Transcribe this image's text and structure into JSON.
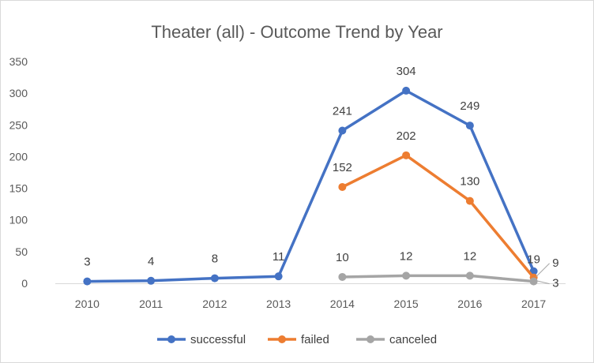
{
  "chart_data": {
    "type": "line",
    "title": "Theater (all) - Outcome Trend by Year",
    "xlabel": "",
    "ylabel": "",
    "categories": [
      "2010",
      "2011",
      "2012",
      "2013",
      "2014",
      "2015",
      "2016",
      "2017"
    ],
    "y_ticks": [
      "0",
      "50",
      "100",
      "150",
      "200",
      "250",
      "300",
      "350"
    ],
    "ylim": [
      0,
      350
    ],
    "grid": false,
    "legend_position": "bottom",
    "series": [
      {
        "name": "successful",
        "color": "#4472C4",
        "values": [
          3,
          4,
          8,
          11,
          241,
          304,
          249,
          19
        ],
        "labels": [
          "3",
          "4",
          "8",
          "11",
          "241",
          "304",
          "249",
          "19"
        ]
      },
      {
        "name": "failed",
        "color": "#ED7D31",
        "values": [
          null,
          null,
          null,
          null,
          152,
          202,
          130,
          9
        ],
        "labels": [
          null,
          null,
          null,
          null,
          "152",
          "202",
          "130",
          "9"
        ]
      },
      {
        "name": "canceled",
        "color": "#A5A5A5",
        "values": [
          null,
          null,
          null,
          null,
          10,
          12,
          12,
          3
        ],
        "labels": [
          null,
          null,
          null,
          null,
          "10",
          "12",
          "12",
          "3"
        ]
      }
    ]
  }
}
